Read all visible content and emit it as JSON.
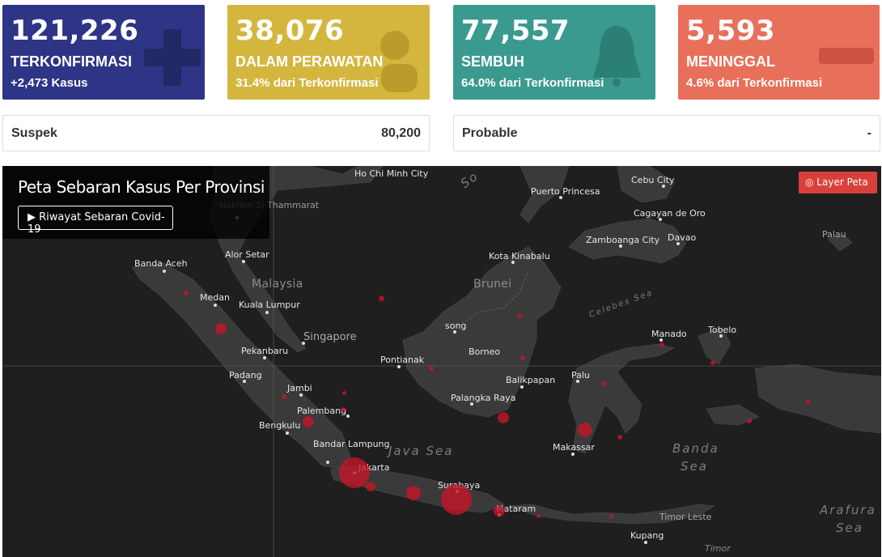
{
  "cards": [
    {
      "number": "121,226",
      "label": "TERKONFIRMASI",
      "sub": "+2,473 Kasus",
      "color": "#2e3486",
      "icon": "plus-icon"
    },
    {
      "number": "38,076",
      "label": "DALAM PERAWATAN",
      "sub": "31.4% dari Terkonfirmasi",
      "color": "#d4b63f",
      "icon": "patient-icon"
    },
    {
      "number": "77,557",
      "label": "SEMBUH",
      "sub": "64.0% dari Terkonfirmasi",
      "color": "#3a9a8f",
      "icon": "bell-icon"
    },
    {
      "number": "5,593",
      "label": "MENINGGAL",
      "sub": "4.6% dari Terkonfirmasi",
      "color": "#e8705a",
      "icon": "minus-icon"
    }
  ],
  "boxes": [
    {
      "label": "Suspek",
      "value": "80,200"
    },
    {
      "label": "Probable",
      "value": "-"
    }
  ],
  "map": {
    "title": "Peta Sebaran Kasus Per Provinsi",
    "history_button": "▶ Riwayat Sebaran Covid-19",
    "layer_button": "Layer Peta",
    "places": [
      "Ho Chi Minh City",
      "Nakhon Si Thammarat",
      "Banda Aceh",
      "Alor Setar",
      "Medan",
      "Kuala Lumpur",
      "Singapore",
      "Pekanbaru",
      "Padang",
      "Jambi",
      "Palembang",
      "Bengkulu",
      "Bandar Lampung",
      "Jakarta",
      "Surabaya",
      "Mataram",
      "Puerto Princesa",
      "Cebu City",
      "Cagayan de Oro",
      "Zamboanga City",
      "Davao",
      "Palau",
      "Kota Kinabalu",
      "song",
      "Pontianak",
      "Borneo",
      "Balikpapan",
      "Palangka Raya",
      "Palu",
      "Makassar",
      "Manado",
      "Tobelo",
      "Timor Leste",
      "Kupang",
      "Timor"
    ],
    "countries": [
      "Malaysia",
      "Brunei"
    ],
    "seas": [
      "Java Sea",
      "Banda",
      "Sea",
      "Celebes Sea",
      "Arafura",
      "Sea",
      "So"
    ]
  }
}
